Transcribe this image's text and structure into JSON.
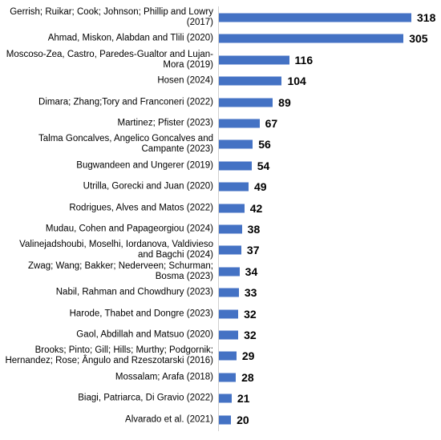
{
  "chart_data": {
    "type": "bar",
    "orientation": "horizontal",
    "color": "#4472c4",
    "categories": [
      "Gerrish; Ruikar; Cook; Johnson; Phillip and Lowry (2017)",
      "Ahmad, Miskon, Alabdan and Tlili (2020)",
      "Moscoso-Zea, Castro, Paredes-Gualtor and Lujan-Mora (2019)",
      "Hosen (2024)",
      "Dimara; Zhang;Tory and Franconeri (2022)",
      "Martinez; Pfister (2023)",
      "Talma Goncalves, Angelico Goncalves and Campante (2023)",
      "Bugwandeen and Ungerer (2019)",
      "Utrilla, Gorecki and Juan (2020)",
      "Rodrigues, Alves and Matos (2022)",
      "Mudau, Cohen and Papageorgiou (2024)",
      "Valinejadshoubi, Moselhi, Iordanova, Valdivieso and Bagchi (2024)",
      "Zwag; Wang; Bakker; Nederveen; Schurman; Bosma (2023)",
      "Nabil, Rahman and Chowdhury (2023)",
      "Harode, Thabet and Dongre (2023)",
      "Gaol, Abdillah and Matsuo (2020)",
      "Brooks; Pinto; Gill; Hills; Murthy; Podgornik; Hernandez; Rose; Ângulo and Rzeszotarski (2016)",
      "Mossalam; Arafa (2018)",
      "Biagi, Patriarca, Di Gravio (2022)",
      "Alvarado et al. (2021)"
    ],
    "values": [
      318,
      305,
      116,
      104,
      89,
      67,
      56,
      54,
      49,
      42,
      38,
      37,
      34,
      33,
      32,
      32,
      29,
      28,
      21,
      20
    ]
  }
}
